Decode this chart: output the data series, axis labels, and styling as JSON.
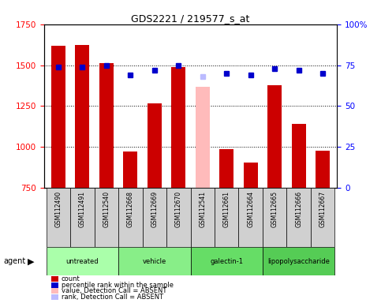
{
  "title": "GDS2221 / 219577_s_at",
  "samples": [
    "GSM112490",
    "GSM112491",
    "GSM112540",
    "GSM112668",
    "GSM112669",
    "GSM112670",
    "GSM112541",
    "GSM112661",
    "GSM112664",
    "GSM112665",
    "GSM112666",
    "GSM112667"
  ],
  "counts": [
    1620,
    1625,
    1510,
    970,
    1265,
    1490,
    755,
    985,
    905,
    1375,
    1140,
    975
  ],
  "percentile_ranks": [
    74,
    74,
    75,
    69,
    72,
    75,
    null,
    70,
    69,
    73,
    72,
    70
  ],
  "absent_value": [
    null,
    null,
    null,
    null,
    null,
    null,
    1370,
    null,
    null,
    null,
    null,
    null
  ],
  "absent_rank": [
    null,
    null,
    null,
    null,
    null,
    null,
    68,
    null,
    null,
    null,
    null,
    null
  ],
  "count_absent": [
    false,
    false,
    false,
    false,
    false,
    false,
    true,
    false,
    false,
    false,
    false,
    false
  ],
  "groups": [
    {
      "label": "untreated",
      "indices": [
        0,
        1,
        2
      ],
      "color": "#aaffaa"
    },
    {
      "label": "vehicle",
      "indices": [
        3,
        4,
        5
      ],
      "color": "#88ee88"
    },
    {
      "label": "galectin-1",
      "indices": [
        6,
        7,
        8
      ],
      "color": "#66dd66"
    },
    {
      "label": "lipopolysaccharide",
      "indices": [
        9,
        10,
        11
      ],
      "color": "#55cc55"
    }
  ],
  "ylim_left": [
    750,
    1750
  ],
  "ylim_right": [
    0,
    100
  ],
  "yticks_left": [
    750,
    1000,
    1250,
    1500,
    1750
  ],
  "yticks_right": [
    0,
    25,
    50,
    75,
    100
  ],
  "bar_color": "#cc0000",
  "dot_color_present": "#0000cc",
  "dot_color_absent_value": "#ffbbbb",
  "dot_color_absent_rank": "#bbbbff",
  "bar_width": 0.6,
  "legend_items": [
    {
      "label": "count",
      "color": "#cc0000"
    },
    {
      "label": "percentile rank within the sample",
      "color": "#0000cc"
    },
    {
      "label": "value, Detection Call = ABSENT",
      "color": "#ffbbbb"
    },
    {
      "label": "rank, Detection Call = ABSENT",
      "color": "#bbbbff"
    }
  ],
  "group_colors_actual": [
    "#aaffaa",
    "#88ee88",
    "#66dd66",
    "#55cc55"
  ]
}
